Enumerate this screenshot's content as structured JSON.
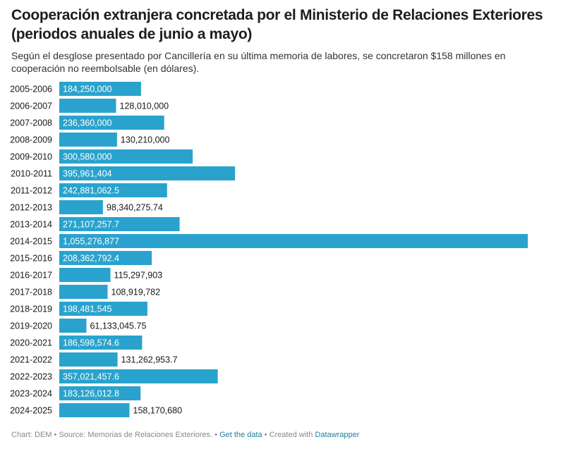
{
  "header": {
    "title": "Cooperación extranjera concretada por el Ministerio de Relaciones Exteriores (periodos anuales de junio a mayo)",
    "subtitle": "Según el desglose presentado por Cancillería en su última memoria de labores, se concretaron $158 millones en cooperación no reembolsable (en dólares)."
  },
  "footer": {
    "chart_credit": "Chart: DEM",
    "sep1": " • ",
    "source": "Source: Memorias de Relaciones Exteriores.",
    "sep2": " • ",
    "get_data": "Get the data",
    "sep3": " • ",
    "created_with": "Created with ",
    "datawrapper": "Datawrapper"
  },
  "colors": {
    "bar": "#29a3cd",
    "label_inside": "#ffffff",
    "label_outside": "#181818"
  },
  "chart_data": {
    "type": "bar",
    "orientation": "horizontal",
    "title": "Cooperación extranjera concretada por el Ministerio de Relaciones Exteriores (periodos anuales de junio a mayo)",
    "xlabel": "",
    "ylabel": "",
    "grid": false,
    "categories": [
      "2005-2006",
      "2006-2007",
      "2007-2008",
      "2008-2009",
      "2009-2010",
      "2010-2011",
      "2011-2012",
      "2012-2013",
      "2013-2014",
      "2014-2015",
      "2015-2016",
      "2016-2017",
      "2017-2018",
      "2018-2019",
      "2019-2020",
      "2020-2021",
      "2021-2022",
      "2022-2023",
      "2023-2024",
      "2024-2025"
    ],
    "values": [
      184250000,
      128010000,
      236360000,
      130210000,
      300580000,
      395961404,
      242881062.5,
      98340275.74,
      271107257.7,
      1055276877,
      208362792.4,
      115297903,
      108919782,
      198481545,
      61133045.75,
      186598574.6,
      131262953.7,
      357021457.6,
      183126012.8,
      158170680
    ],
    "value_labels": [
      "184,250,000",
      "128,010,000",
      "236,360,000",
      "130,210,000",
      "300,580,000",
      "395,961,404",
      "242,881,062.5",
      "98,340,275.74",
      "271,107,257.7",
      "1,055,276,877",
      "208,362,792.4",
      "115,297,903",
      "108,919,782",
      "198,481,545",
      "61,133,045.75",
      "186,598,574.6",
      "131,262,953.7",
      "357,021,457.6",
      "183,126,012.8",
      "158,170,680"
    ],
    "xlim": [
      0,
      1055276877
    ]
  }
}
